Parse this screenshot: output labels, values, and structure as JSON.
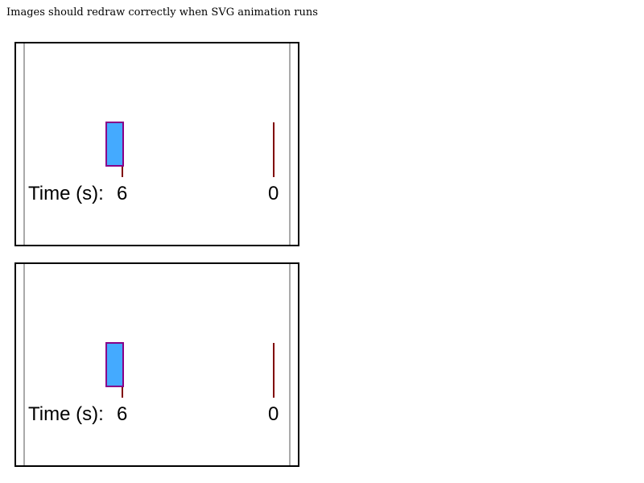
{
  "page": {
    "caption": "Images should redraw correctly when SVG animation runs"
  },
  "panels": [
    {
      "time_label": "Time (s):",
      "time_start": "6",
      "time_end": "0",
      "colors": {
        "rect_fill": "#44aaff",
        "rect_stroke": "#880088",
        "marker": "#800000",
        "side_border": "#aaaaaa"
      }
    },
    {
      "time_label": "Time (s):",
      "time_start": "6",
      "time_end": "0",
      "colors": {
        "rect_fill": "#44aaff",
        "rect_stroke": "#880088",
        "marker": "#800000",
        "side_border": "#aaaaaa"
      }
    }
  ]
}
